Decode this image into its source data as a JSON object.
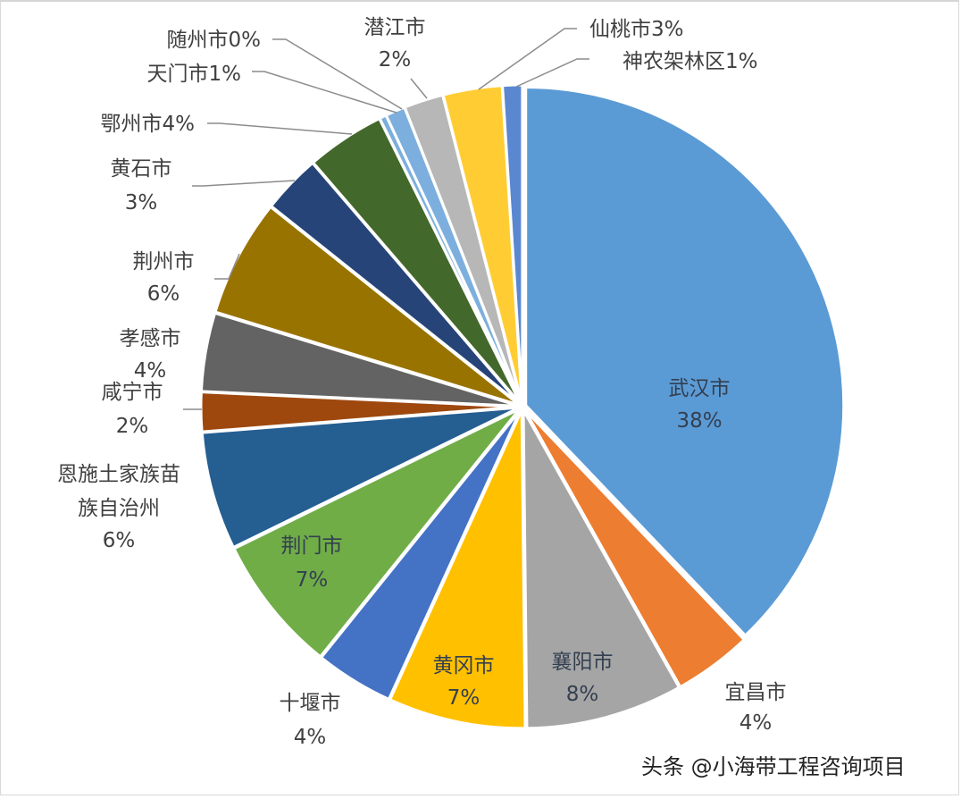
{
  "chart_data": {
    "type": "pie",
    "title": "",
    "start_angle_deg": 0,
    "direction": "clockwise",
    "slices": [
      {
        "name": "武汉市",
        "value": 38,
        "label": "38%",
        "color": "#5b9bd5"
      },
      {
        "name": "宜昌市",
        "value": 4,
        "label": "4%",
        "color": "#ed7d31"
      },
      {
        "name": "襄阳市",
        "value": 8,
        "label": "8%",
        "color": "#a5a5a5"
      },
      {
        "name": "黄冈市",
        "value": 7,
        "label": "7%",
        "color": "#ffc000"
      },
      {
        "name": "十堰市",
        "value": 4,
        "label": "4%",
        "color": "#4472c4"
      },
      {
        "name": "荆门市",
        "value": 7,
        "label": "7%",
        "color": "#70ad47"
      },
      {
        "name": "恩施土家族苗族自治州",
        "value": 6,
        "label": "6%",
        "color": "#255e91"
      },
      {
        "name": "咸宁市",
        "value": 2,
        "label": "2%",
        "color": "#9e480e"
      },
      {
        "name": "孝感市",
        "value": 4,
        "label": "4%",
        "color": "#636363"
      },
      {
        "name": "荆州市",
        "value": 6,
        "label": "6%",
        "color": "#997300"
      },
      {
        "name": "黄石市",
        "value": 3,
        "label": "3%",
        "color": "#264478"
      },
      {
        "name": "鄂州市",
        "value": 4,
        "label": "4%",
        "color": "#43682b"
      },
      {
        "name": "随州市",
        "value": 0,
        "label": "0%",
        "color": "#7cafdd"
      },
      {
        "name": "天门市",
        "value": 1,
        "label": "1%",
        "color": "#7cafdd"
      },
      {
        "name": "潜江市",
        "value": 2,
        "label": "2%",
        "color": "#b7b7b7"
      },
      {
        "name": "仙桃市",
        "value": 3,
        "label": "3%",
        "color": "#ffcd33"
      },
      {
        "name": "神农架林区",
        "value": 1,
        "label": "1%",
        "color": "#5a87d0"
      }
    ],
    "legend": "none",
    "data_labels": "category name and percentage"
  },
  "labels": {
    "wuhan": {
      "name": "武汉市",
      "pct": "38%"
    },
    "yichang": {
      "name": "宜昌市",
      "pct": "4%"
    },
    "xiangyang": {
      "name": "襄阳市",
      "pct": "8%"
    },
    "huanggang": {
      "name": "黄冈市",
      "pct": "7%"
    },
    "shiyan": {
      "name": "十堰市",
      "pct": "4%"
    },
    "jingmen": {
      "name": "荆门市",
      "pct": "7%"
    },
    "enshi": {
      "line1": "恩施土家族苗",
      "line2": "族自治州",
      "pct": "6%"
    },
    "xianning": {
      "name": "咸宁市",
      "pct": "2%"
    },
    "xiaogan": {
      "name": "孝感市",
      "pct": "4%"
    },
    "jingzhou": {
      "name": "荆州市",
      "pct": "6%"
    },
    "huangshi": {
      "name": "黄石市",
      "pct": "3%"
    },
    "ezhou": {
      "text": "鄂州市4%"
    },
    "suizhou": {
      "text": "随州市0%"
    },
    "tianmen": {
      "text": "天门市1%"
    },
    "qianjiang": {
      "name": "潜江市",
      "pct": "2%"
    },
    "xiantao": {
      "text": "仙桃市3%"
    },
    "shennongjia": {
      "text": "神农架林区1%"
    }
  },
  "watermark": "头条 @小海带工程咨询项目"
}
